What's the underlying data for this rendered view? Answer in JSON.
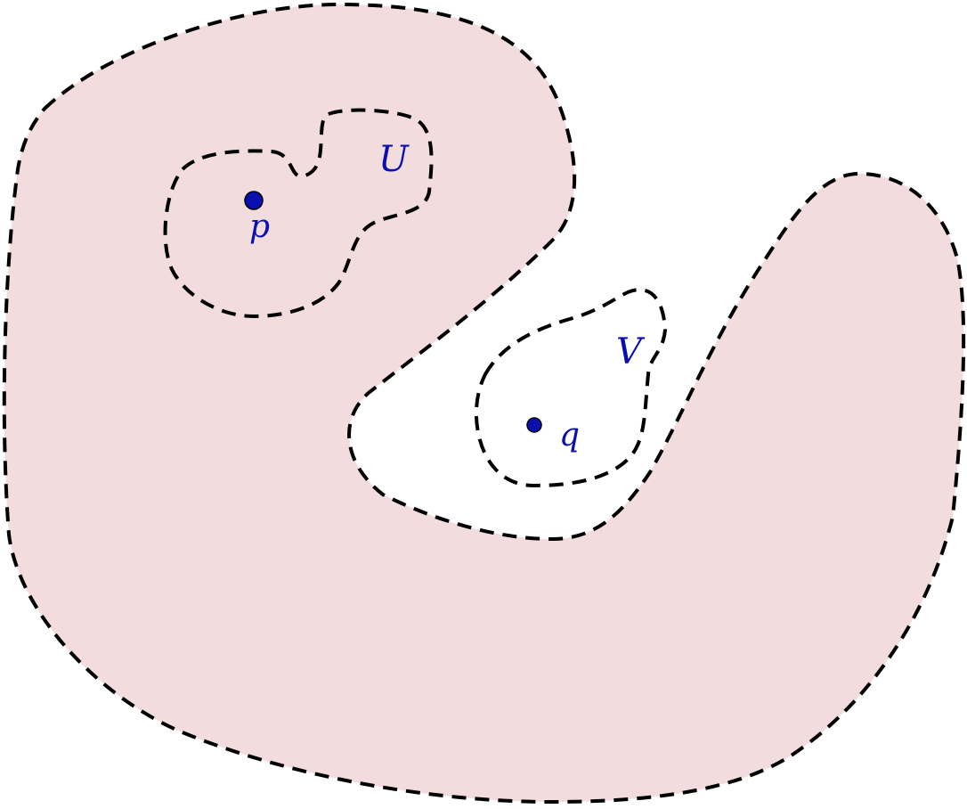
{
  "colors": {
    "region_fill": "#f2dcdd",
    "outline": "#000000",
    "label": "#0a10b0",
    "point": "#0a10b0"
  },
  "labels": {
    "set_u": "U",
    "set_v": "V",
    "point_p": "p",
    "point_q": "q"
  }
}
